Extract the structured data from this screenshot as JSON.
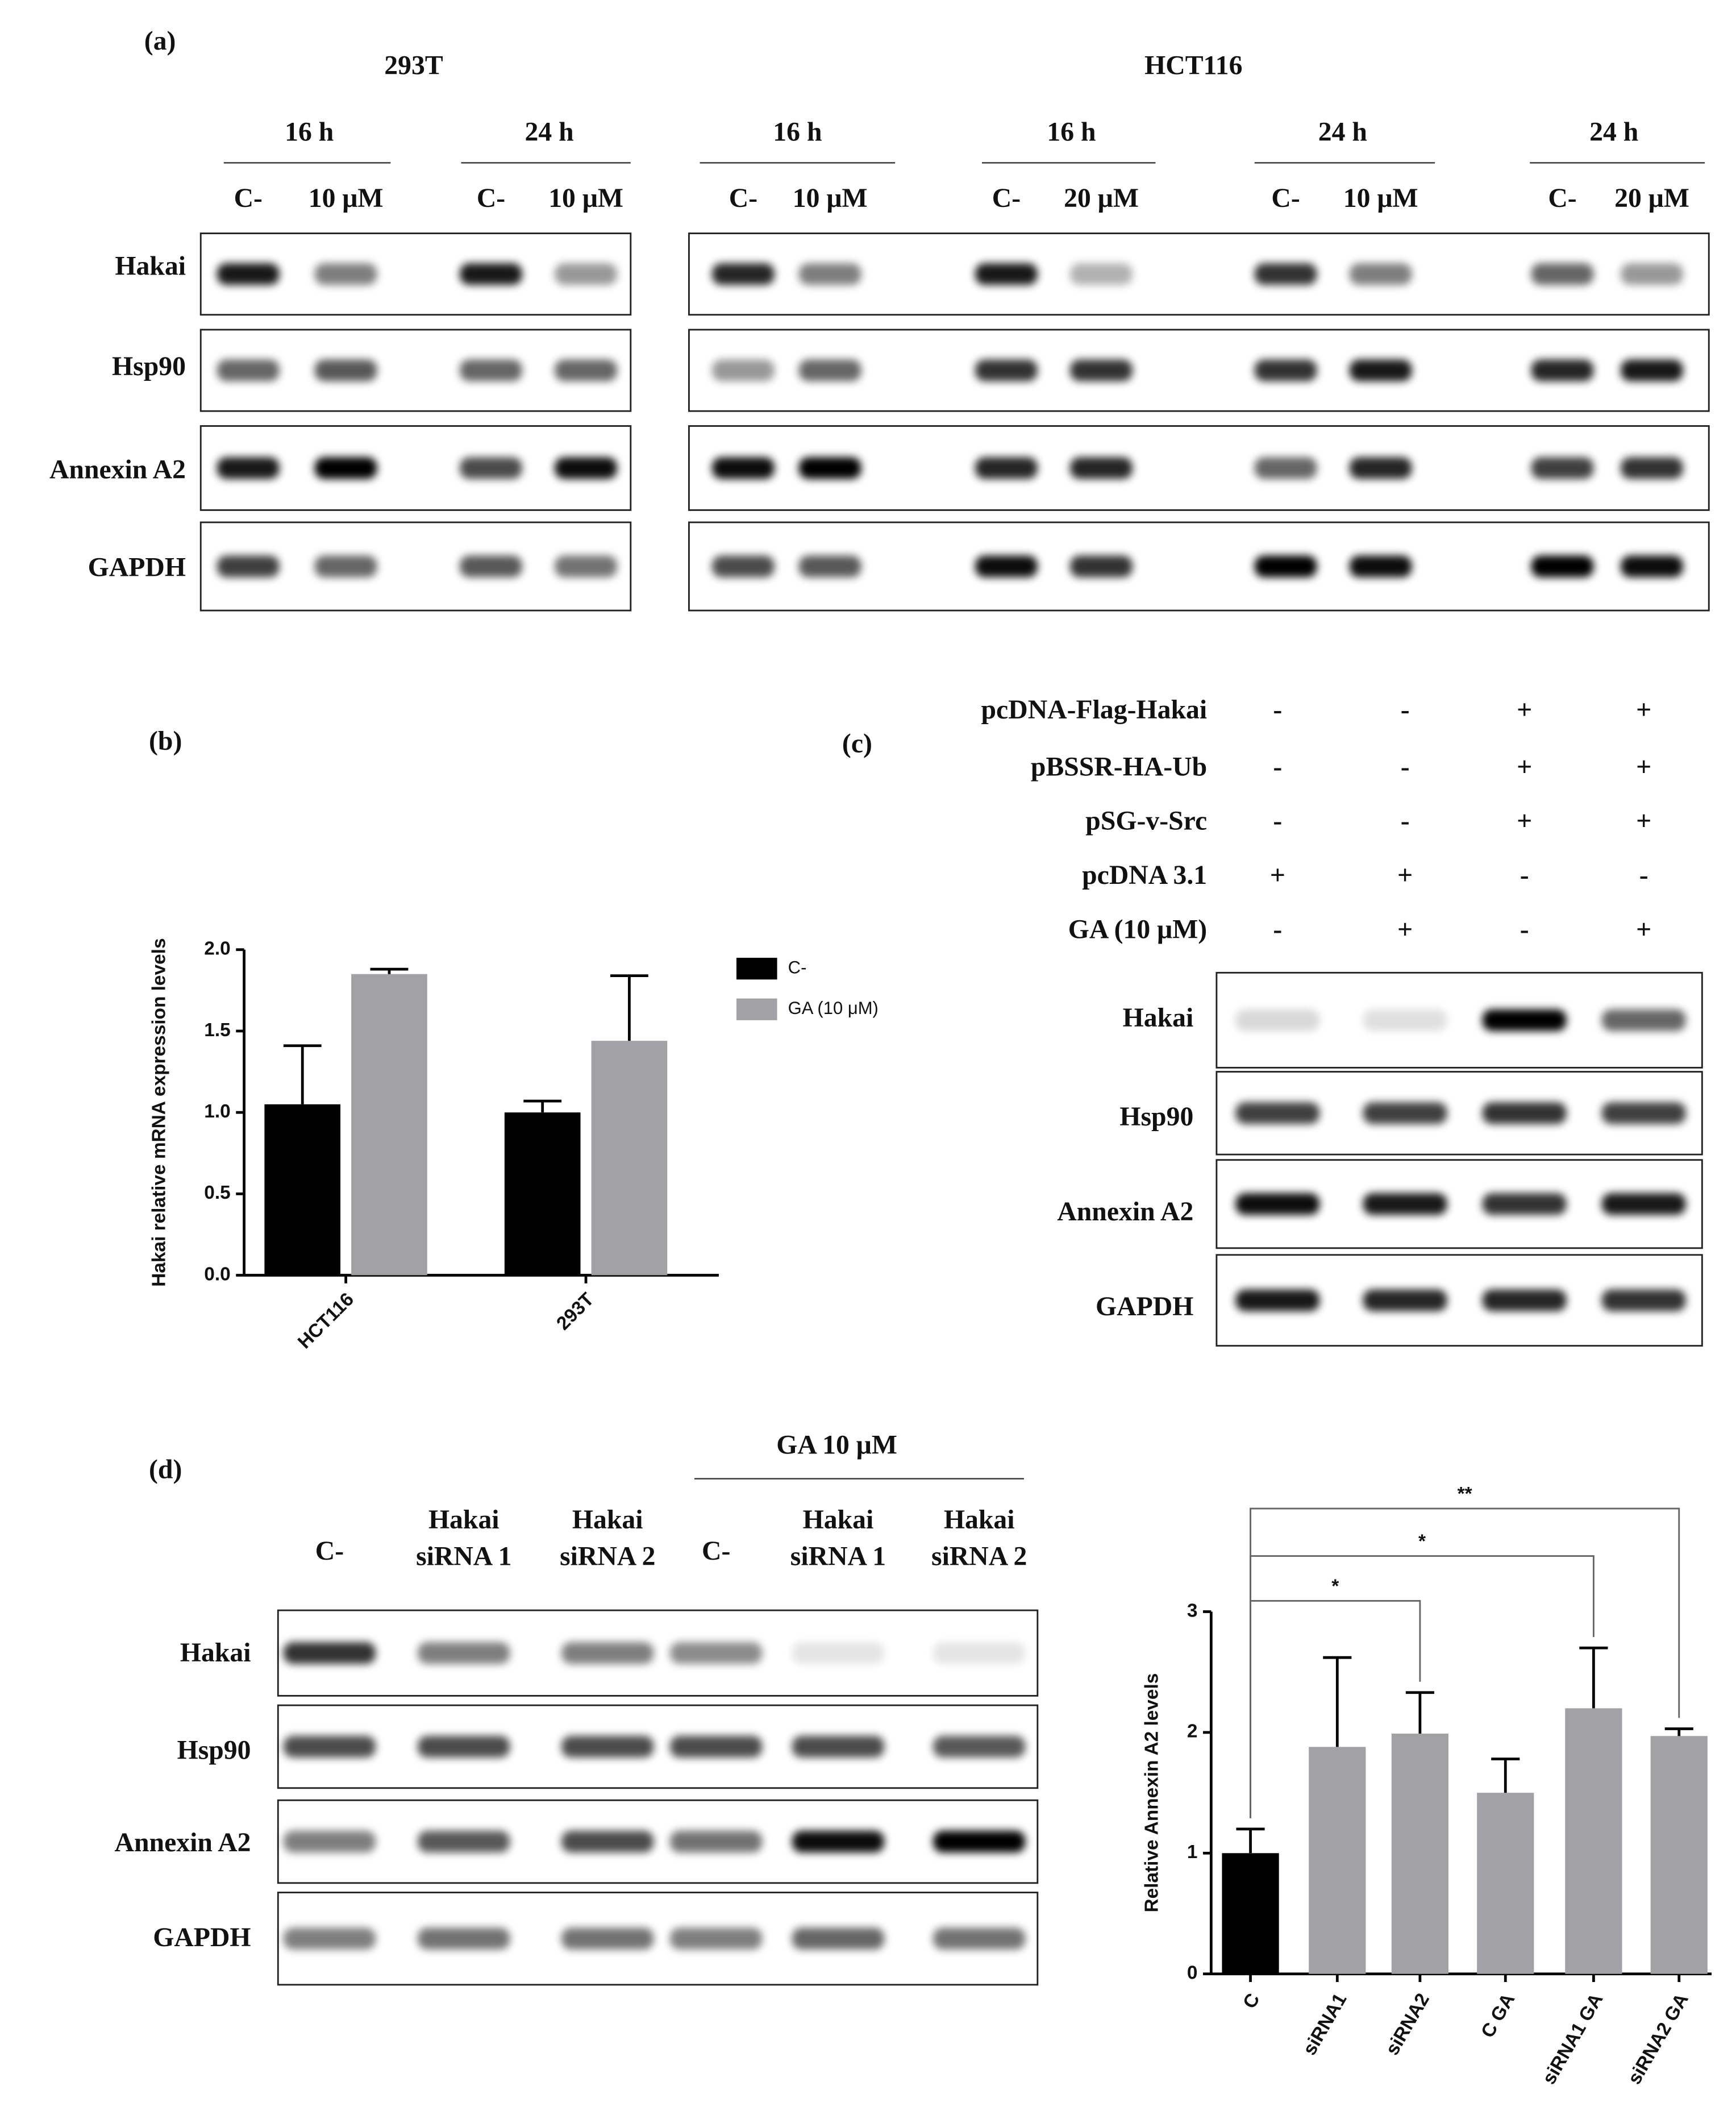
{
  "figure_a": {
    "label": "(a)",
    "row_labels": [
      "Hakai",
      "Hsp90",
      "Annexin A2",
      "GAPDH"
    ],
    "groups": [
      {
        "cell": "293T",
        "conditions": [
          {
            "time": "16 h",
            "lanes": [
              "C-",
              "10 μM"
            ]
          },
          {
            "time": "24 h",
            "lanes": [
              "C-",
              "10 μM"
            ]
          }
        ]
      },
      {
        "cell": "HCT116",
        "conditions": [
          {
            "time": "16 h",
            "lanes": [
              "C-",
              "10 μM"
            ]
          },
          {
            "time": "16 h",
            "lanes": [
              "C-",
              "20 μM"
            ]
          },
          {
            "time": "24 h",
            "lanes": [
              "C-",
              "10 μM"
            ]
          },
          {
            "time": "24 h",
            "lanes": [
              "C-",
              "20 μM"
            ]
          }
        ]
      }
    ]
  },
  "figure_c": {
    "label": "(c)",
    "treatments": [
      {
        "name": "pcDNA-Flag-Hakai",
        "signs": [
          "-",
          "-",
          "+",
          "+"
        ]
      },
      {
        "name": "pBSSR-HA-Ub",
        "signs": [
          "-",
          "-",
          "+",
          "+"
        ]
      },
      {
        "name": "pSG-v-Src",
        "signs": [
          "-",
          "-",
          "+",
          "+"
        ]
      },
      {
        "name": "pcDNA 3.1",
        "signs": [
          "+",
          "+",
          "-",
          "-"
        ]
      },
      {
        "name": "GA (10 μM)",
        "signs": [
          "-",
          "+",
          "-",
          "+"
        ]
      }
    ],
    "row_labels": [
      "Hakai",
      "Hsp90",
      "Annexin A2",
      "GAPDH"
    ]
  },
  "figure_d": {
    "label": "(d)",
    "treatment_header": "GA 10 μM",
    "lanes": [
      [
        "C-"
      ],
      [
        "Hakai",
        "siRNA 1"
      ],
      [
        "Hakai",
        "siRNA 2"
      ],
      [
        "C-"
      ],
      [
        "Hakai",
        "siRNA 1"
      ],
      [
        "Hakai",
        "siRNA 2"
      ]
    ],
    "row_labels": [
      "Hakai",
      "Hsp90",
      "Annexin A2",
      "GAPDH"
    ]
  },
  "chart_data": [
    {
      "type": "bar",
      "label": "(b)",
      "y_label": "Hakai relative mRNA  expression levels",
      "categories": [
        "HCT116",
        "293T"
      ],
      "series": [
        {
          "name": "C-",
          "color": "#000000",
          "values": [
            1.05,
            1.0
          ],
          "errors": [
            0.36,
            0.07
          ]
        },
        {
          "name": "GA (10 μM)",
          "color": "#a2a2a6",
          "values": [
            1.85,
            1.44
          ],
          "errors": [
            0.03,
            0.4
          ]
        }
      ],
      "ylim": [
        0,
        2.0
      ],
      "yticks": [
        {
          "value": 0,
          "label": "0.0"
        },
        {
          "value": 0.5,
          "label": "0.5"
        },
        {
          "value": 1,
          "label": "1.0"
        },
        {
          "value": 1.5,
          "label": "1.5"
        },
        {
          "value": 2,
          "label": "2.0"
        }
      ]
    },
    {
      "type": "bar",
      "y_label": "Relative Annexin A2 levels",
      "categories": [
        "C",
        "siRNA1",
        "siRNA2",
        "C GA",
        "siRNA1 GA",
        "siRNA2 GA"
      ],
      "values": [
        1.0,
        1.88,
        1.99,
        1.5,
        2.2,
        1.97
      ],
      "errors": [
        0.2,
        0.74,
        0.34,
        0.28,
        0.5,
        0.06
      ],
      "colors": [
        "#000000",
        "#a2a2a6",
        "#a2a2a6",
        "#a2a2a6",
        "#a2a2a6",
        "#a2a2a6"
      ],
      "ylim": [
        0,
        3
      ],
      "yticks": [
        0,
        1,
        2,
        3
      ],
      "comparisons": [
        {
          "label": "*",
          "between": [
            "C",
            "siRNA2"
          ]
        },
        {
          "label": "*",
          "between": [
            "C",
            "siRNA1 GA"
          ]
        },
        {
          "label": "**",
          "between": [
            "C",
            "siRNA2 GA"
          ]
        }
      ]
    }
  ]
}
